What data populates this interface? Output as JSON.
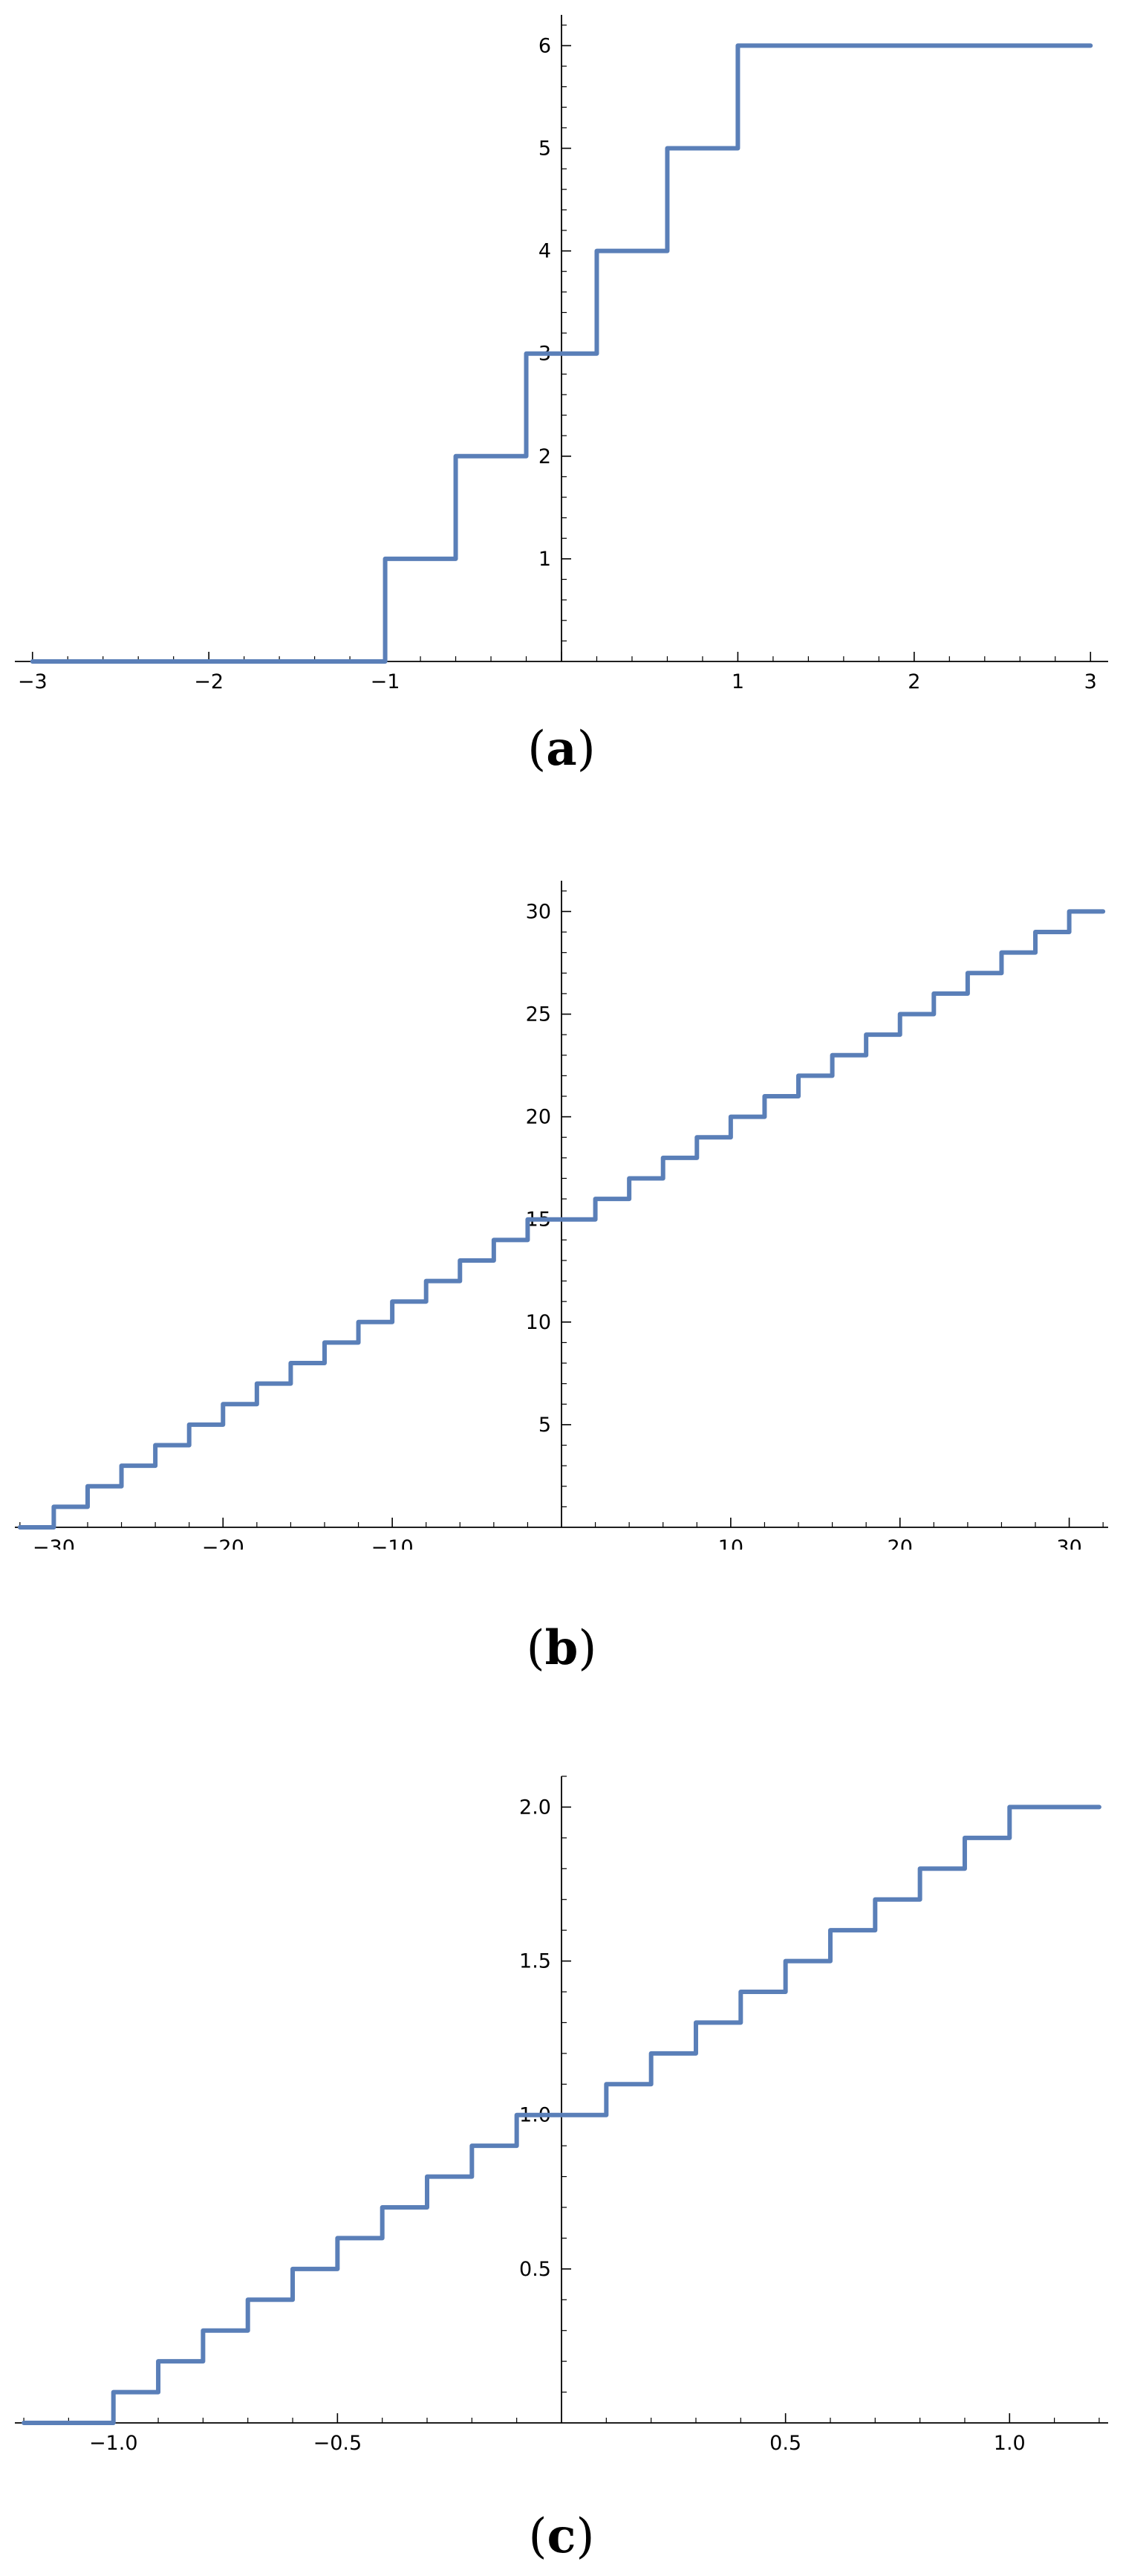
{
  "accent_color": "#5a7fb8",
  "chart_data": [
    {
      "type": "line",
      "step": true,
      "caption": {
        "open": "(",
        "letter": "a",
        "close": ")"
      },
      "xlim": [
        -3.1,
        3.1
      ],
      "ylim": [
        0,
        6.3
      ],
      "x_ticks": [
        -3,
        -2,
        -1,
        0,
        1,
        2,
        3
      ],
      "x_tick_labels": [
        "−3",
        "−2",
        "−1",
        "",
        "1",
        "2",
        "3"
      ],
      "y_ticks": [
        1,
        2,
        3,
        4,
        5,
        6
      ],
      "y_tick_labels": [
        "1",
        "2",
        "3",
        "4",
        "5",
        "6"
      ],
      "x_minor_step": 0.2,
      "y_minor_step": 0.2,
      "series": [
        {
          "x": [
            -3.0,
            -1.0,
            -0.6,
            -0.2,
            0.2,
            0.6,
            1.0,
            3.0
          ],
          "y": [
            0,
            1,
            2,
            3,
            4,
            5,
            6,
            6
          ]
        }
      ]
    },
    {
      "type": "line",
      "step": true,
      "caption": {
        "open": "(",
        "letter": "b",
        "close": ")"
      },
      "xlim": [
        -32.3,
        32.3
      ],
      "ylim": [
        0,
        31.5
      ],
      "x_ticks": [
        -30,
        -20,
        -10,
        10,
        20,
        30
      ],
      "x_tick_labels": [
        "−30",
        "−20",
        "−10",
        "10",
        "20",
        "30"
      ],
      "y_ticks": [
        5,
        10,
        15,
        20,
        25,
        30
      ],
      "y_tick_labels": [
        "5",
        "10",
        "15",
        "20",
        "25",
        "30"
      ],
      "x_minor_step": 2,
      "y_minor_step": 1,
      "series": [
        {
          "x": [
            -32.0,
            -30.0,
            -28.0,
            -26.0,
            -24.0,
            -22.0,
            -20.0,
            -18.0,
            -16.0,
            -14.0,
            -12.0,
            -10.0,
            -8.0,
            -6.0,
            -4.0,
            -2.0,
            0.0,
            2.0,
            4.0,
            6.0,
            8.0,
            10.0,
            12.0,
            14.0,
            16.0,
            18.0,
            20.0,
            22.0,
            24.0,
            26.0,
            28.0,
            30.0,
            32.0
          ],
          "y": [
            0,
            1,
            2,
            3,
            4,
            5,
            6,
            7,
            8,
            9,
            10,
            11,
            12,
            13,
            14,
            15,
            15,
            16,
            17,
            18,
            19,
            20,
            21,
            22,
            23,
            24,
            25,
            26,
            27,
            28,
            29,
            30,
            30
          ]
        }
      ]
    },
    {
      "type": "line",
      "step": true,
      "caption": {
        "open": "(",
        "letter": "c",
        "close": ")"
      },
      "xlim": [
        -1.22,
        1.22
      ],
      "ylim": [
        0,
        2.1
      ],
      "x_ticks": [
        -1.0,
        -0.5,
        0.5,
        1.0
      ],
      "x_tick_labels": [
        "−1.0",
        "−0.5",
        "0.5",
        "1.0"
      ],
      "y_ticks": [
        0.5,
        1.0,
        1.5,
        2.0
      ],
      "y_tick_labels": [
        "0.5",
        "1.0",
        "1.5",
        "2.0"
      ],
      "x_minor_step": 0.1,
      "y_minor_step": 0.1,
      "series": [
        {
          "x": [
            -1.2,
            -1.0,
            -0.9,
            -0.8,
            -0.7,
            -0.6,
            -0.5,
            -0.4,
            -0.3,
            -0.2,
            -0.1,
            0.0,
            0.1,
            0.2,
            0.3,
            0.4,
            0.5,
            0.6,
            0.7,
            0.8,
            0.9,
            1.0,
            1.2
          ],
          "y": [
            0,
            0.1,
            0.2,
            0.3,
            0.4,
            0.5,
            0.6,
            0.7,
            0.8,
            0.9,
            1.0,
            1.0,
            1.1,
            1.2,
            1.3,
            1.4,
            1.5,
            1.6,
            1.7,
            1.8,
            1.9,
            2.0,
            2.0
          ]
        }
      ]
    }
  ]
}
